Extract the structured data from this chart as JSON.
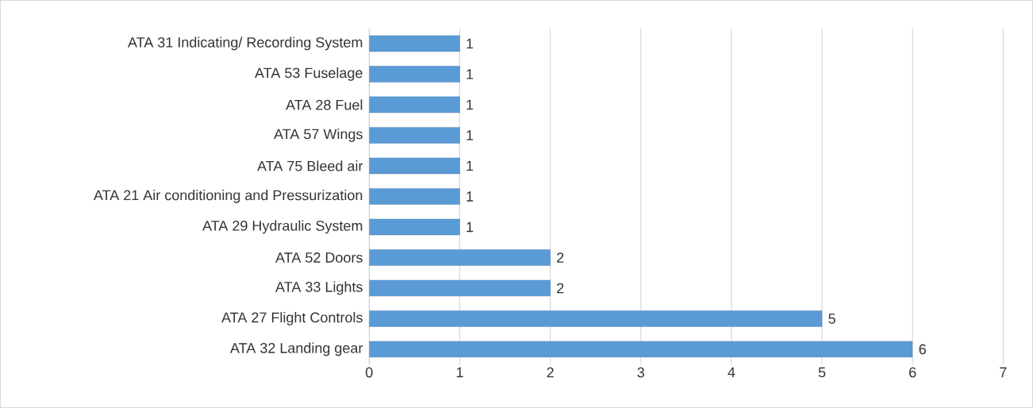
{
  "chart_data": {
    "type": "bar",
    "orientation": "horizontal",
    "categories": [
      "ATA 31 Indicating/ Recording System",
      "ATA 53 Fuselage",
      "ATA 28 Fuel",
      "ATA 57 Wings",
      "ATA 75 Bleed air",
      "ATA 21 Air conditioning and Pressurization",
      "ATA 29 Hydraulic System",
      "ATA 52 Doors",
      "ATA 33 Lights",
      "ATA 27 Flight Controls",
      "ATA 32 Landing gear"
    ],
    "values": [
      1,
      1,
      1,
      1,
      1,
      1,
      1,
      2,
      2,
      5,
      6
    ],
    "color": "#5b9bd5",
    "xlim": [
      0,
      7
    ],
    "xticks": [
      0,
      1,
      2,
      3,
      4,
      5,
      6,
      7
    ],
    "grid": "x",
    "data_labels": true
  }
}
